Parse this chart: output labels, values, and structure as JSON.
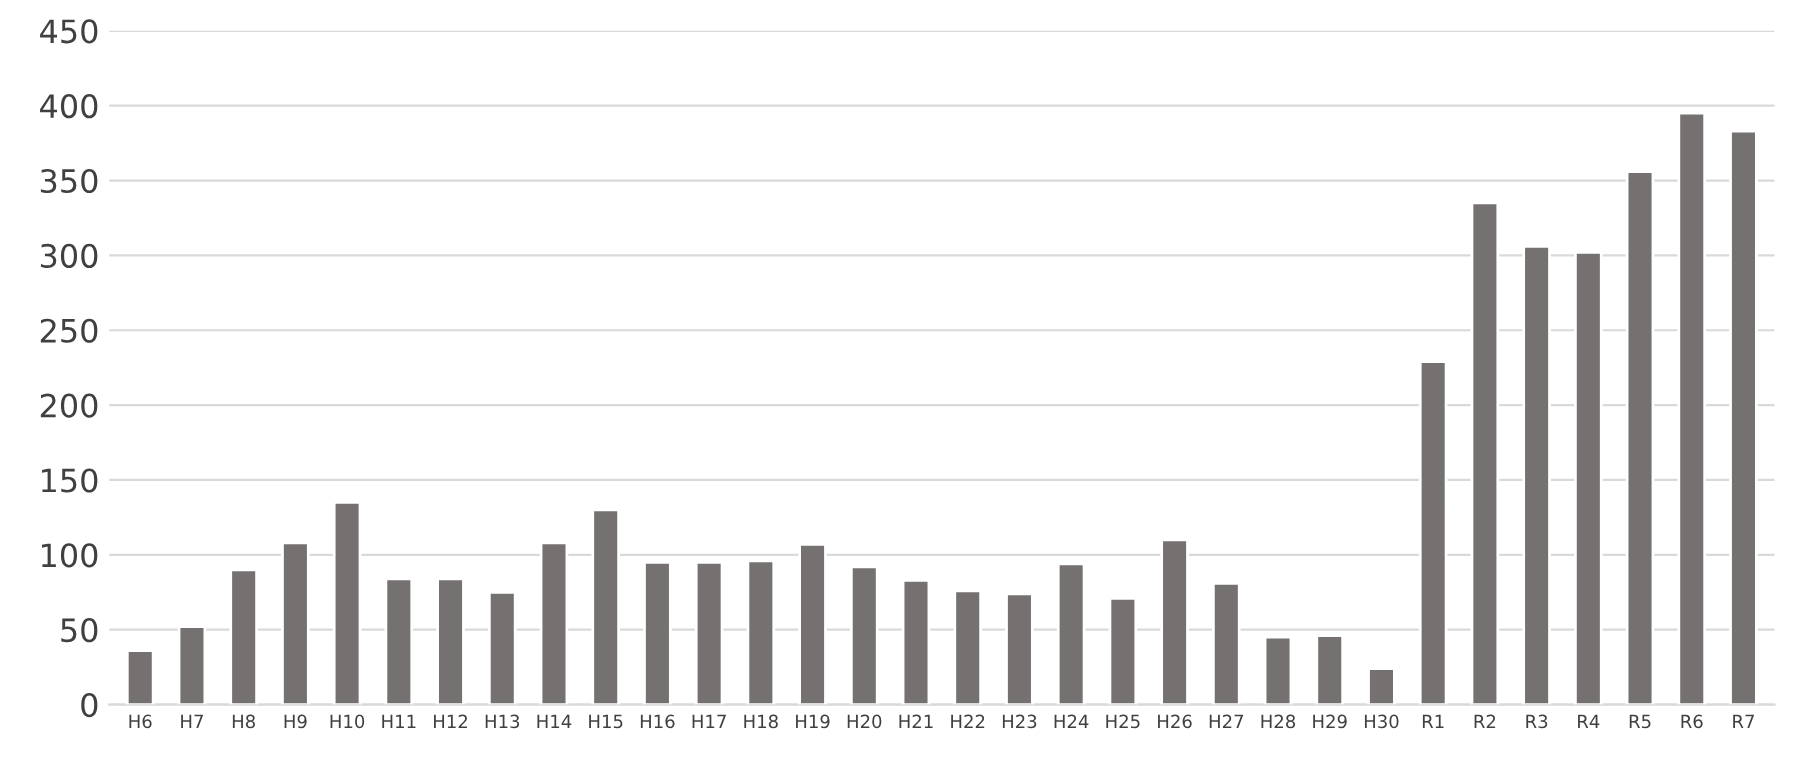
{
  "chart_data": {
    "type": "bar",
    "categories": [
      "H6",
      "H7",
      "H8",
      "H9",
      "H10",
      "H11",
      "H12",
      "H13",
      "H14",
      "H15",
      "H16",
      "H17",
      "H18",
      "H19",
      "H20",
      "H21",
      "H22",
      "H23",
      "H24",
      "H25",
      "H26",
      "H27",
      "H28",
      "H29",
      "H30",
      "R1",
      "R2",
      "R3",
      "R4",
      "R5",
      "R6",
      "R7"
    ],
    "values": [
      36,
      52,
      90,
      108,
      135,
      84,
      84,
      75,
      108,
      130,
      95,
      95,
      96,
      107,
      92,
      83,
      76,
      74,
      94,
      71,
      110,
      81,
      45,
      46,
      24,
      229,
      335,
      306,
      302,
      356,
      395,
      383
    ],
    "color": "#767171",
    "ylim": [
      0,
      450
    ],
    "yticks": [
      0,
      50,
      100,
      150,
      200,
      250,
      300,
      350,
      400,
      450
    ],
    "grid": "y"
  }
}
